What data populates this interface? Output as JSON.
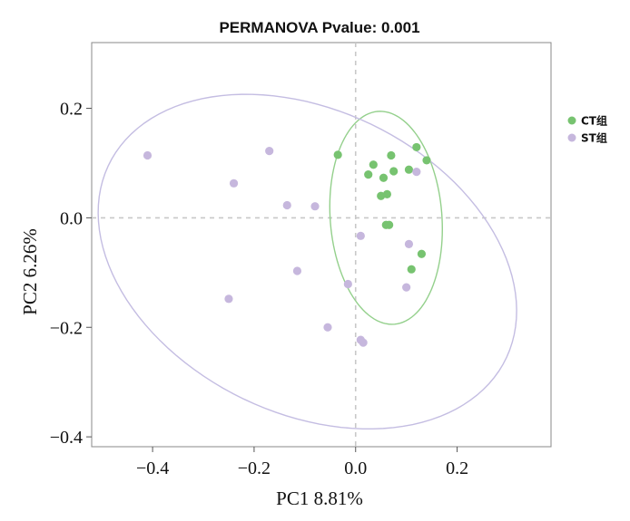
{
  "chart_data": {
    "type": "scatter",
    "title": "PERMANOVA Pvalue: 0.001",
    "xlabel": "PC1 8.81%",
    "ylabel": "PC2 6.26%",
    "xlim": [
      -0.52,
      0.385
    ],
    "ylim": [
      -0.418,
      0.32
    ],
    "x_ticks": [
      {
        "value": -0.4,
        "label": "−0.4"
      },
      {
        "value": -0.2,
        "label": "−0.2"
      },
      {
        "value": 0.0,
        "label": "0.0"
      },
      {
        "value": 0.2,
        "label": "0.2"
      }
    ],
    "y_ticks": [
      {
        "value": 0.2,
        "label": "0.2"
      },
      {
        "value": 0.0,
        "label": "0.0"
      },
      {
        "value": -0.2,
        "label": "−0.2"
      },
      {
        "value": -0.4,
        "label": "−0.4"
      }
    ],
    "grid": false,
    "zero_lines": true,
    "legend_position": "right-top",
    "series": [
      {
        "name": "CT组",
        "color": "#77c370",
        "ellipse_color": "#94d08c",
        "points": [
          [
            -0.035,
            0.115
          ],
          [
            0.035,
            0.097
          ],
          [
            0.025,
            0.079
          ],
          [
            0.055,
            0.073
          ],
          [
            0.07,
            0.114
          ],
          [
            0.075,
            0.085
          ],
          [
            0.105,
            0.088
          ],
          [
            0.12,
            0.129
          ],
          [
            0.14,
            0.105
          ],
          [
            0.05,
            0.04
          ],
          [
            0.062,
            0.043
          ],
          [
            0.06,
            -0.013
          ],
          [
            0.066,
            -0.013
          ],
          [
            0.13,
            -0.066
          ],
          [
            0.11,
            -0.094
          ]
        ],
        "ellipse": {
          "cx": 0.06,
          "cy": 0.0,
          "rx": 0.195,
          "ry": 0.11,
          "angle_deg": 95
        }
      },
      {
        "name": "ST组",
        "color": "#c6b7dd",
        "ellipse_color": "#c4bde2",
        "points": [
          [
            -0.41,
            0.114
          ],
          [
            -0.24,
            0.063
          ],
          [
            -0.17,
            0.122
          ],
          [
            -0.135,
            0.023
          ],
          [
            -0.08,
            0.021
          ],
          [
            0.01,
            -0.033
          ],
          [
            0.105,
            -0.048
          ],
          [
            0.12,
            0.084
          ],
          [
            -0.115,
            -0.097
          ],
          [
            -0.015,
            -0.121
          ],
          [
            -0.25,
            -0.148
          ],
          [
            -0.055,
            -0.2
          ],
          [
            0.01,
            -0.223
          ],
          [
            0.015,
            -0.228
          ],
          [
            0.1,
            -0.127
          ]
        ],
        "ellipse": {
          "cx": -0.095,
          "cy": -0.08,
          "rx": 0.43,
          "ry": 0.28,
          "angle_deg": -22
        }
      }
    ]
  }
}
